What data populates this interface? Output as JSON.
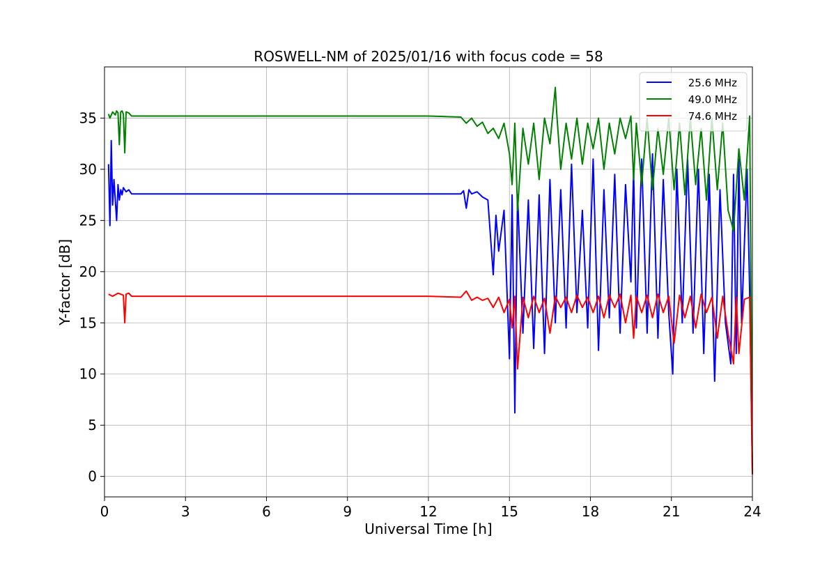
{
  "chart_data": {
    "type": "line",
    "title": "ROSWELL-NM of 2025/01/16 with focus code = 58",
    "xlabel": "Universal Time [h]",
    "ylabel": "Y-factor [dB]",
    "xlim": [
      0,
      24
    ],
    "ylim": [
      -2,
      40
    ],
    "xticks": [
      0,
      3,
      6,
      9,
      12,
      15,
      18,
      21,
      24
    ],
    "yticks": [
      0,
      5,
      10,
      15,
      20,
      25,
      30,
      35
    ],
    "grid": true,
    "legend_position": "top-right",
    "series": [
      {
        "name": "25.6 MHz",
        "color": "#0000ff",
        "x": [
          0.15,
          0.2,
          0.25,
          0.3,
          0.35,
          0.4,
          0.45,
          0.5,
          0.55,
          0.6,
          0.65,
          0.7,
          0.8,
          0.9,
          1.0,
          2.0,
          4.0,
          6.0,
          8.0,
          10.0,
          12.0,
          13.2,
          13.3,
          13.4,
          13.5,
          13.6,
          13.8,
          14.0,
          14.2,
          14.4,
          14.5,
          14.6,
          14.8,
          15.0,
          15.1,
          15.2,
          15.3,
          15.5,
          15.7,
          15.9,
          16.1,
          16.3,
          16.5,
          16.7,
          16.9,
          17.1,
          17.3,
          17.5,
          17.7,
          17.9,
          18.1,
          18.3,
          18.5,
          18.7,
          18.9,
          19.1,
          19.3,
          19.5,
          19.6,
          19.7,
          19.9,
          20.1,
          20.3,
          20.5,
          20.7,
          20.9,
          21.05,
          21.2,
          21.4,
          21.6,
          21.8,
          22.0,
          22.2,
          22.4,
          22.6,
          22.8,
          23.0,
          23.2,
          23.3,
          23.4,
          23.5,
          23.6,
          23.8,
          23.9,
          24.0
        ],
        "y": [
          30.5,
          24.5,
          32.8,
          26.5,
          29.0,
          27.0,
          25.0,
          28.5,
          27.0,
          28.0,
          27.5,
          28.2,
          27.8,
          28.0,
          27.6,
          27.6,
          27.6,
          27.6,
          27.6,
          27.6,
          27.6,
          27.6,
          27.9,
          26.2,
          28.0,
          27.6,
          27.8,
          27.3,
          27.0,
          19.7,
          25.5,
          22.0,
          26.0,
          11.5,
          27.5,
          6.2,
          27.5,
          14.0,
          27.0,
          12.5,
          27.5,
          12.0,
          29.0,
          15.0,
          28.0,
          14.5,
          30.5,
          16.0,
          26.0,
          14.5,
          31.0,
          12.3,
          28.0,
          15.5,
          29.5,
          14.0,
          28.5,
          19.0,
          30.0,
          14.5,
          31.0,
          14.0,
          31.5,
          13.5,
          29.0,
          16.0,
          10.0,
          30.0,
          15.0,
          31.0,
          14.0,
          30.0,
          12.0,
          29.5,
          9.3,
          28.0,
          15.0,
          11.0,
          29.5,
          12.0,
          31.0,
          15.0,
          30.0,
          18.0,
          0.5
        ]
      },
      {
        "name": "49.0 MHz",
        "color": "#008000",
        "x": [
          0.15,
          0.2,
          0.3,
          0.4,
          0.45,
          0.5,
          0.55,
          0.6,
          0.65,
          0.7,
          0.75,
          0.8,
          0.9,
          1.0,
          2.0,
          4.0,
          6.0,
          8.0,
          10.0,
          12.0,
          13.2,
          13.4,
          13.6,
          13.8,
          14.0,
          14.2,
          14.4,
          14.6,
          14.8,
          15.0,
          15.1,
          15.2,
          15.3,
          15.5,
          15.7,
          15.9,
          16.1,
          16.3,
          16.5,
          16.7,
          16.75,
          16.9,
          17.1,
          17.3,
          17.5,
          17.7,
          17.9,
          18.1,
          18.3,
          18.5,
          18.7,
          18.9,
          19.1,
          19.3,
          19.5,
          19.6,
          19.7,
          19.9,
          20.1,
          20.3,
          20.5,
          20.7,
          20.9,
          21.1,
          21.3,
          21.5,
          21.7,
          21.9,
          22.1,
          22.3,
          22.5,
          22.7,
          22.9,
          23.1,
          23.3,
          23.5,
          23.7,
          23.9,
          24.0
        ],
        "y": [
          35.4,
          35.0,
          35.6,
          35.3,
          35.7,
          35.5,
          32.4,
          35.6,
          35.7,
          35.4,
          31.6,
          35.6,
          35.5,
          35.2,
          35.2,
          35.2,
          35.2,
          35.2,
          35.2,
          35.2,
          35.1,
          34.5,
          35.0,
          34.2,
          34.6,
          33.5,
          34.0,
          33.0,
          34.5,
          31.5,
          28.5,
          34.5,
          26.0,
          34.0,
          30.5,
          34.5,
          29.0,
          35.0,
          32.5,
          38.0,
          35.5,
          30.0,
          34.5,
          31.0,
          35.0,
          30.5,
          34.5,
          32.0,
          35.0,
          30.0,
          34.5,
          31.5,
          35.0,
          33.0,
          35.2,
          29.0,
          34.5,
          28.5,
          35.0,
          28.0,
          34.0,
          29.5,
          35.0,
          28.0,
          34.5,
          27.5,
          35.0,
          28.5,
          34.0,
          27.0,
          35.0,
          28.0,
          34.5,
          26.0,
          24.0,
          32.0,
          27.0,
          35.2,
          0.3
        ]
      },
      {
        "name": "74.6 MHz",
        "color": "#ff0000",
        "x": [
          0.15,
          0.3,
          0.5,
          0.7,
          0.75,
          0.8,
          0.9,
          1.0,
          2.0,
          4.0,
          6.0,
          8.0,
          10.0,
          12.0,
          13.2,
          13.4,
          13.6,
          13.8,
          14.0,
          14.2,
          14.4,
          14.6,
          14.8,
          15.0,
          15.1,
          15.2,
          15.3,
          15.5,
          15.7,
          15.9,
          16.1,
          16.3,
          16.5,
          16.7,
          16.9,
          17.1,
          17.3,
          17.5,
          17.7,
          17.9,
          18.1,
          18.3,
          18.5,
          18.7,
          18.9,
          19.1,
          19.3,
          19.5,
          19.6,
          19.7,
          19.9,
          20.1,
          20.3,
          20.5,
          20.7,
          20.9,
          21.1,
          21.3,
          21.5,
          21.7,
          21.9,
          22.1,
          22.3,
          22.5,
          22.7,
          22.9,
          23.1,
          23.3,
          23.4,
          23.5,
          23.7,
          23.9,
          24.0
        ],
        "y": [
          17.8,
          17.6,
          17.9,
          17.7,
          15.0,
          17.8,
          17.9,
          17.6,
          17.6,
          17.6,
          17.6,
          17.6,
          17.6,
          17.6,
          17.5,
          18.1,
          17.2,
          17.5,
          17.2,
          17.4,
          16.5,
          17.5,
          16.0,
          17.3,
          14.5,
          17.6,
          10.5,
          17.5,
          15.5,
          17.6,
          16.0,
          17.4,
          14.0,
          17.6,
          16.5,
          17.5,
          16.0,
          17.7,
          16.5,
          17.5,
          16.0,
          17.6,
          15.5,
          17.7,
          16.5,
          17.8,
          15.0,
          17.7,
          13.5,
          17.6,
          16.0,
          17.7,
          15.5,
          17.8,
          16.0,
          17.6,
          13.0,
          17.7,
          15.5,
          17.6,
          14.5,
          17.8,
          16.0,
          17.5,
          13.5,
          17.6,
          14.0,
          11.0,
          17.5,
          12.0,
          17.3,
          17.5,
          0.2
        ]
      }
    ]
  }
}
